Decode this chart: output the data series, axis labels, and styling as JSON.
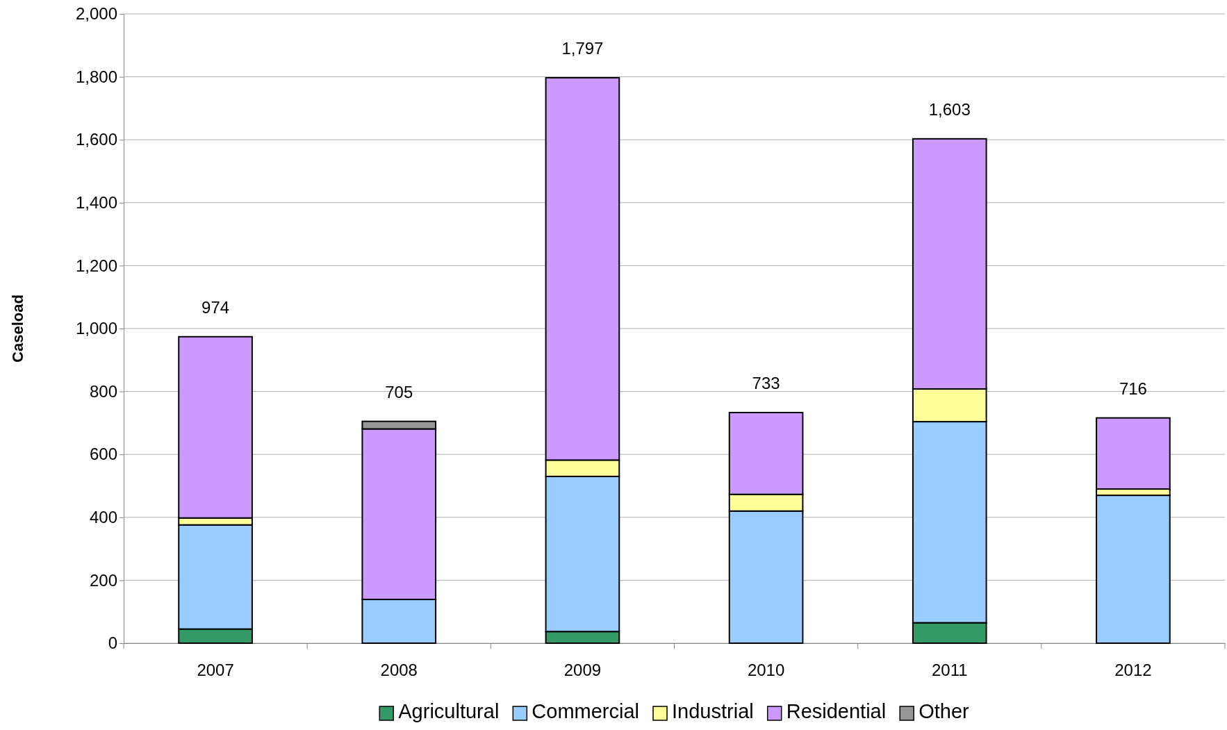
{
  "chart_data": {
    "type": "bar",
    "ylabel": "Caseload",
    "categories": [
      "2007",
      "2008",
      "2009",
      "2010",
      "2011",
      "2012"
    ],
    "stacked": true,
    "series": [
      {
        "name": "Agricultural",
        "color": "#339966",
        "values": [
          45,
          0,
          37,
          0,
          65,
          0
        ]
      },
      {
        "name": "Commercial",
        "color": "#99ccff",
        "values": [
          331,
          139,
          493,
          420,
          639,
          470
        ]
      },
      {
        "name": "Industrial",
        "color": "#ffff99",
        "values": [
          22,
          0,
          52,
          53,
          104,
          20
        ]
      },
      {
        "name": "Residential",
        "color": "#cc99ff",
        "values": [
          576,
          542,
          1215,
          260,
          795,
          226
        ]
      },
      {
        "name": "Other",
        "color": "#969696",
        "values": [
          0,
          24,
          0,
          0,
          0,
          0
        ]
      }
    ],
    "totals": [
      "974",
      "705",
      "1,797",
      "733",
      "1,603",
      "716"
    ],
    "ylim": [
      0,
      2000
    ],
    "yticks": [
      {
        "value": 0,
        "label": "0"
      },
      {
        "value": 200,
        "label": "200"
      },
      {
        "value": 400,
        "label": "400"
      },
      {
        "value": 600,
        "label": "600"
      },
      {
        "value": 800,
        "label": "800"
      },
      {
        "value": 1000,
        "label": "1,000"
      },
      {
        "value": 1200,
        "label": "1,200"
      },
      {
        "value": 1400,
        "label": "1,400"
      },
      {
        "value": 1600,
        "label": "1,600"
      },
      {
        "value": 1800,
        "label": "1,800"
      },
      {
        "value": 2000,
        "label": "2,000"
      }
    ],
    "grid": "y",
    "legend": "bottom"
  }
}
